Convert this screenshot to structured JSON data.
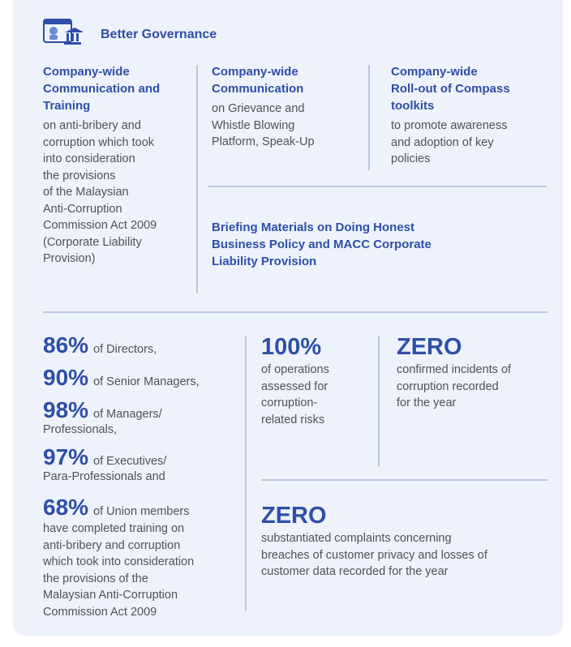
{
  "section_title": "Better Governance",
  "icon": "governance-building-icon",
  "col1": {
    "heading": [
      "Company-wide",
      "Communication and",
      "Training"
    ],
    "body": [
      "on anti-bribery and",
      "corruption which took",
      "into consideration",
      "the provisions",
      "of the Malaysian",
      "Anti-Corruption",
      "Commission Act 2009",
      "(Corporate Liability",
      "Provision)"
    ]
  },
  "col2": {
    "heading": [
      "Company-wide",
      "Communication"
    ],
    "body": [
      "on Grievance and",
      "Whistle Blowing",
      "Platform, Speak-Up"
    ]
  },
  "col3": {
    "heading": [
      "Company-wide",
      "Roll-out of Compass",
      "toolkits"
    ],
    "body": [
      "to promote awareness",
      "and adoption of key",
      "policies"
    ]
  },
  "briefing": [
    "Briefing Materials on Doing Honest",
    "Business Policy and MACC Corporate",
    "Liability Provision"
  ],
  "training_stats": {
    "s1": {
      "pct": "86%",
      "text": "of Directors,"
    },
    "s2": {
      "pct": "90%",
      "text": "of Senior Managers,"
    },
    "s3": {
      "pct": "98%",
      "text": "of Managers/",
      "cont": "Professionals,"
    },
    "s4": {
      "pct": "97%",
      "text": "of Executives/",
      "cont": "Para-Professionals and"
    },
    "s5": {
      "pct": "68%",
      "text": "of Union members",
      "cont": [
        "have completed training on",
        "anti-bribery and corruption",
        "which took into consideration",
        "the provisions of the",
        "Malaysian Anti-Corruption",
        "Commission Act 2009"
      ]
    }
  },
  "ops": {
    "value": "100%",
    "text": [
      "of operations",
      "assessed for",
      "corruption-",
      "related risks"
    ]
  },
  "zero_corruption": {
    "value": "ZERO",
    "text": [
      "confirmed incidents of",
      "corruption recorded",
      "for the year"
    ]
  },
  "zero_privacy": {
    "value": "ZERO",
    "text": [
      "substantiated complaints concerning",
      "breaches of customer privacy and losses of",
      "customer data recorded for the year"
    ]
  }
}
